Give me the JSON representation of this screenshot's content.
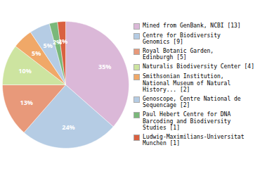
{
  "chart_data": {
    "type": "pie",
    "categories": [
      "Mined from GenBank, NCBI [13]",
      "Centre for Biodiversity\nGenomics [9]",
      "Royal Botanic Garden,\nEdinburgh [5]",
      "Naturalis Biodiversity Center [4]",
      "Smithsonian Institution,\nNational Museum of Natural\nHistory... [2]",
      "Genoscope, Centre National de\nSequencage [2]",
      "Paul Hebert Centre for DNA\nBarcoding and Biodiversity\nStudies [1]",
      "Ludwig-Maximilians-Universitat\nMunchen [1]"
    ],
    "values": [
      35,
      24,
      13,
      10,
      5,
      5,
      2,
      2
    ],
    "value_labels": [
      "35%",
      "24%",
      "13%",
      "10%",
      "5%",
      "5%",
      "2%",
      "2%"
    ],
    "colors": [
      "#dbb8d8",
      "#b5cce4",
      "#e8997a",
      "#cde4a0",
      "#f0a868",
      "#b5cce4",
      "#7ab87a",
      "#d96040"
    ],
    "data_labels": true,
    "legend": "right"
  }
}
